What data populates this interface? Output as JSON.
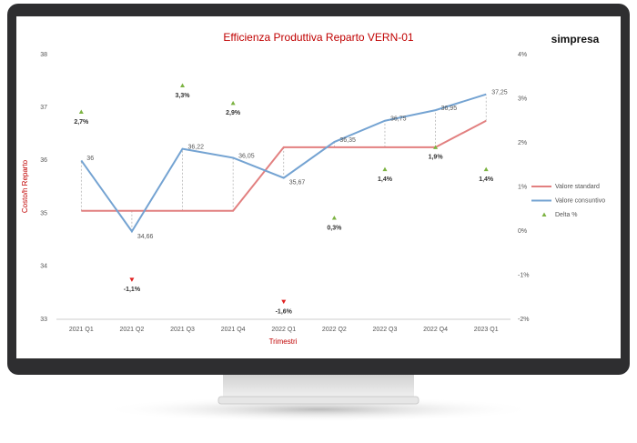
{
  "chart_data": {
    "type": "line",
    "title": "Efficienza Produttiva Reparto VERN-01",
    "logo": "simpresa",
    "y_label": "Costo/h Reparto",
    "x_label": "Trimestri",
    "categories": [
      "2021 Q1",
      "2021 Q2",
      "2021 Q3",
      "2021 Q4",
      "2022 Q1",
      "2022 Q2",
      "2022 Q3",
      "2022 Q4",
      "2023 Q1"
    ],
    "series": [
      {
        "name": "Valore standard",
        "color": "#e28080",
        "values": [
          35.05,
          35.05,
          35.05,
          35.05,
          36.25,
          36.25,
          36.25,
          36.25,
          36.75
        ]
      },
      {
        "name": "Valore consuntivo",
        "color": "#74a3d2",
        "values": [
          36,
          34.66,
          36.22,
          36.05,
          35.67,
          36.35,
          36.75,
          36.95,
          37.25
        ],
        "value_labels": [
          "36",
          "34,66",
          "36,22",
          "36,05",
          "35,67",
          "36,35",
          "36,75",
          "36,95",
          "37,25"
        ]
      },
      {
        "name": "Delta %",
        "color": "#7cb342",
        "negative_color": "#e02020",
        "axis": "y2",
        "values": [
          2.7,
          -1.1,
          3.3,
          2.9,
          -1.6,
          0.3,
          1.4,
          1.9,
          1.4
        ],
        "value_labels": [
          "2,7%",
          "-1,1%",
          "3,3%",
          "2,9%",
          "-1,6%",
          "0,3%",
          "1,4%",
          "1,9%",
          "1,4%"
        ]
      }
    ],
    "ylim": [
      33,
      38
    ],
    "yticks": [
      33,
      34,
      35,
      36,
      37,
      38
    ],
    "y2lim": [
      -2,
      4
    ],
    "y2ticks": [
      {
        "value": -2,
        "label": "-2%"
      },
      {
        "value": -1,
        "label": "-1%"
      },
      {
        "value": 0,
        "label": "0%"
      },
      {
        "value": 1,
        "label": "1%"
      },
      {
        "value": 2,
        "label": "2%"
      },
      {
        "value": 3,
        "label": "3%"
      },
      {
        "value": 4,
        "label": "4%"
      }
    ],
    "grid": false,
    "legend": "right"
  }
}
